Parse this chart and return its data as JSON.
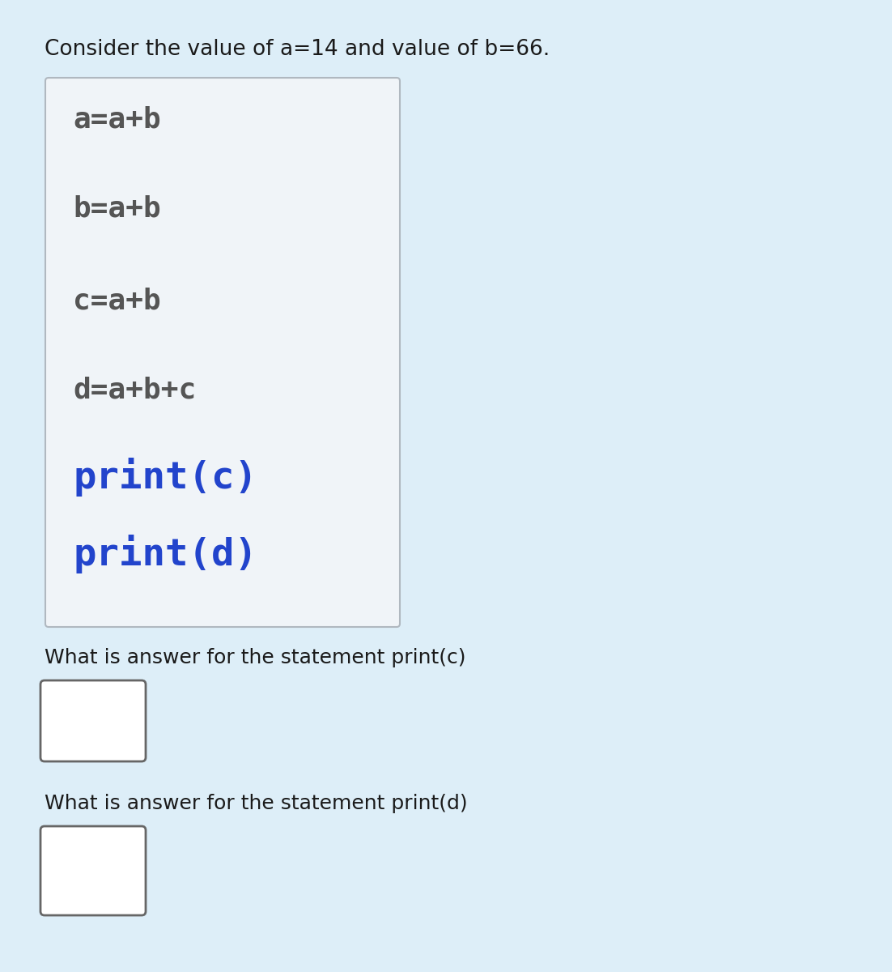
{
  "page_bg": "#ddeef8",
  "title_text": "Consider the value of a=14 and value of b=66.",
  "title_fontsize": 19,
  "title_color": "#1a1a1a",
  "code_box_facecolor": "#f0f4f8",
  "code_box_edgecolor": "#b0b8c0",
  "code_lines_dark": [
    "a=a+b",
    "b=a+b",
    "c=a+b",
    "d=a+b+c"
  ],
  "code_dark_color": "#555555",
  "code_lines_blue": [
    "print(c)",
    "print(d)"
  ],
  "code_blue_color": "#2244cc",
  "code_fontsize_dark": 26,
  "code_fontsize_blue": 34,
  "question1": "What is answer for the statement print(c)",
  "question2": "What is answer for the statement print(d)",
  "question_fontsize": 18,
  "question_color": "#1a1a1a",
  "answer_box_facecolor": "#ffffff",
  "answer_box_edgecolor": "#666666"
}
